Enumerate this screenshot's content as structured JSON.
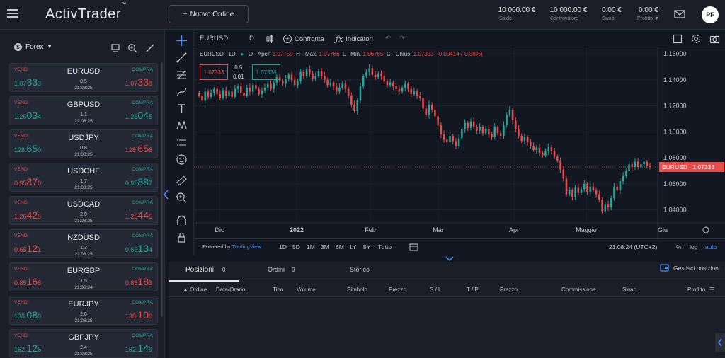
{
  "header": {
    "logo": "ActivTrader",
    "logo_tm": "™",
    "new_order": "Nuovo Ordine",
    "kpis": [
      {
        "value": "10 000.00 €",
        "label": "Saldo"
      },
      {
        "value": "10 000.00 €",
        "label": "Controvalore"
      },
      {
        "value": "0.00 €",
        "label": "Swap"
      },
      {
        "value": "0.00 €",
        "label": "Profitto"
      }
    ],
    "avatar": "PF"
  },
  "sidebar": {
    "market_select": "Forex",
    "sell_label": "VENDI",
    "buy_label": "COMPRA",
    "instruments": [
      {
        "symbol": "EURUSD",
        "spread": "0.5",
        "time": "21:08:25",
        "bid_a": "1.07",
        "bid_b": "33",
        "bid_c": "3",
        "ask_a": "1.07",
        "ask_b": "33",
        "ask_c": "8",
        "bid_color": "green",
        "ask_color": "red"
      },
      {
        "symbol": "GBPUSD",
        "spread": "1.1",
        "time": "21:08:25",
        "bid_a": "1.26",
        "bid_b": "03",
        "bid_c": "4",
        "ask_a": "1.26",
        "ask_b": "04",
        "ask_c": "5",
        "bid_color": "green",
        "ask_color": "green"
      },
      {
        "symbol": "USDJPY",
        "spread": "0.8",
        "time": "21:08:25",
        "bid_a": "128.",
        "bid_b": "65",
        "bid_c": "0",
        "ask_a": "128.",
        "ask_b": "65",
        "ask_c": "8",
        "bid_color": "green",
        "ask_color": "red"
      },
      {
        "symbol": "USDCHF",
        "spread": "1.7",
        "time": "21:08:25",
        "bid_a": "0.95",
        "bid_b": "87",
        "bid_c": "0",
        "ask_a": "0.95",
        "ask_b": "88",
        "ask_c": "7",
        "bid_color": "red",
        "ask_color": "green"
      },
      {
        "symbol": "USDCAD",
        "spread": "2.0",
        "time": "21:08:25",
        "bid_a": "1.26",
        "bid_b": "42",
        "bid_c": "5",
        "ask_a": "1.26",
        "ask_b": "44",
        "ask_c": "5",
        "bid_color": "red",
        "ask_color": "red"
      },
      {
        "symbol": "NZDUSD",
        "spread": "1.3",
        "time": "21:08:25",
        "bid_a": "0.65",
        "bid_b": "12",
        "bid_c": "1",
        "ask_a": "0.65",
        "ask_b": "13",
        "ask_c": "4",
        "bid_color": "red",
        "ask_color": "green"
      },
      {
        "symbol": "EURGBP",
        "spread": "1.5",
        "time": "21:08:24",
        "bid_a": "0.85",
        "bid_b": "16",
        "bid_c": "8",
        "ask_a": "0.85",
        "ask_b": "18",
        "ask_c": "3",
        "bid_color": "red",
        "ask_color": "red"
      },
      {
        "symbol": "EURJPY",
        "spread": "2.0",
        "time": "21:08:25",
        "bid_a": "138.",
        "bid_b": "08",
        "bid_c": "0",
        "ask_a": "138.",
        "ask_b": "10",
        "ask_c": "0",
        "bid_color": "green",
        "ask_color": "red"
      },
      {
        "symbol": "GBPJPY",
        "spread": "2.4",
        "time": "21:08:25",
        "bid_a": "162.",
        "bid_b": "12",
        "bid_c": "5",
        "ask_a": "162.",
        "ask_b": "14",
        "ask_c": "9",
        "bid_color": "green",
        "ask_color": "green"
      }
    ]
  },
  "chart_toolbar": {
    "symbol": "EURUSD",
    "interval": "D",
    "compare": "Confronta",
    "indicators": "Indicatori"
  },
  "chart": {
    "legend_symbol": "EURUSD",
    "legend_interval": "1D",
    "ohlc": {
      "o_label": "O - Aper.",
      "o": "1.07750",
      "h_label": "H - Max.",
      "h": "1.07786",
      "l_label": "L - Min.",
      "l": "1.06785",
      "c_label": "C - Chius.",
      "c": "1.07333",
      "change": "-0.00414 (-0.38%)"
    },
    "bid": "1.07333",
    "ask": "1.07338",
    "spread_top": "0.5",
    "spread_bottom": "0.01",
    "last_label": "EURUSD · 1.07333",
    "bottom": {
      "powered": "Powered by",
      "brand": "TradingView",
      "ranges": [
        "1D",
        "5D",
        "1M",
        "3M",
        "6M",
        "1Y",
        "5Y",
        "Tutto"
      ],
      "clock": "21:08:24 (UTC+2)",
      "pct": "%",
      "log": "log",
      "auto": "auto"
    }
  },
  "chart_data": {
    "type": "candlestick",
    "y_ticks": [
      "1.16000",
      "1.14000",
      "1.12000",
      "1.10000",
      "1.08000",
      "1.06000",
      "1.04000"
    ],
    "ylim": [
      1.03,
      1.165
    ],
    "x_ticks": [
      "Dic",
      "2022",
      "Feb",
      "Mar",
      "Apr",
      "Maggio",
      "Giu"
    ],
    "closes": [
      1.128,
      1.124,
      1.131,
      1.127,
      1.13,
      1.133,
      1.129,
      1.126,
      1.132,
      1.128,
      1.131,
      1.127,
      1.133,
      1.135,
      1.13,
      1.128,
      1.134,
      1.131,
      1.136,
      1.133,
      1.129,
      1.132,
      1.134,
      1.137,
      1.133,
      1.138,
      1.142,
      1.139,
      1.137,
      1.141,
      1.144,
      1.14,
      1.136,
      1.139,
      1.146,
      1.143,
      1.148,
      1.145,
      1.141,
      1.143,
      1.147,
      1.143,
      1.14,
      1.136,
      1.138,
      1.135,
      1.131,
      1.134,
      1.137,
      1.133,
      1.128,
      1.121,
      1.116,
      1.124,
      1.135,
      1.143,
      1.146,
      1.149,
      1.144,
      1.142,
      1.145,
      1.143,
      1.139,
      1.136,
      1.138,
      1.135,
      1.133,
      1.131,
      1.134,
      1.137,
      1.133,
      1.129,
      1.131,
      1.128,
      1.126,
      1.118,
      1.113,
      1.121,
      1.117,
      1.112,
      1.105,
      1.098,
      1.094,
      1.092,
      1.097,
      1.093,
      1.089,
      1.095,
      1.102,
      1.107,
      1.103,
      1.108,
      1.104,
      1.101,
      1.104,
      1.099,
      1.102,
      1.098,
      1.096,
      1.104,
      1.099,
      1.097,
      1.105,
      1.113,
      1.117,
      1.109,
      1.102,
      1.097,
      1.093,
      1.096,
      1.092,
      1.089,
      1.086,
      1.088,
      1.084,
      1.082,
      1.085,
      1.088,
      1.085,
      1.081,
      1.078,
      1.071,
      1.064,
      1.052,
      1.055,
      1.05,
      1.057,
      1.053,
      1.056,
      1.06,
      1.054,
      1.058,
      1.055,
      1.052,
      1.048,
      1.039,
      1.044,
      1.042,
      1.049,
      1.058,
      1.055,
      1.062,
      1.066,
      1.07,
      1.075,
      1.073,
      1.077,
      1.073,
      1.075,
      1.077,
      1.074,
      1.073
    ]
  },
  "positions": {
    "tabs": [
      {
        "label": "Posizioni",
        "count": "0"
      },
      {
        "label": "Ordini",
        "count": "0"
      },
      {
        "label": "Storico",
        "count": ""
      }
    ],
    "manage": "Gestisci posizioni",
    "columns": [
      "Ordine",
      "Data/Orario",
      "Tipo",
      "Volume",
      "Simbolo",
      "Prezzo",
      "S / L",
      "T / P",
      "Prezzo",
      "Commissione",
      "Swap",
      "Profitto"
    ]
  },
  "colors": {
    "up": "#26a69a",
    "down": "#e84d4d",
    "bg": "#131722",
    "panel": "#1b1e27"
  }
}
